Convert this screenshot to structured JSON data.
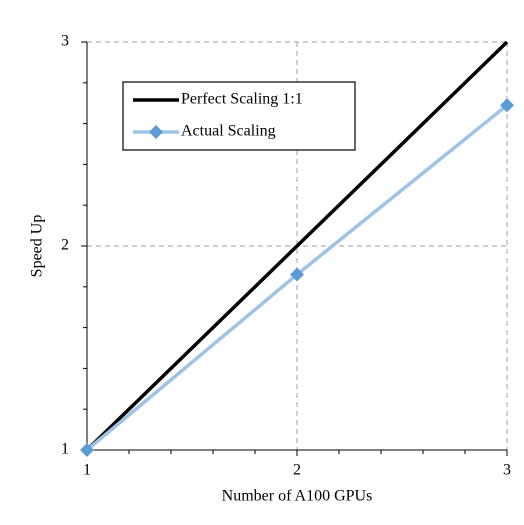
{
  "chart_data": {
    "type": "line",
    "x": [
      1,
      2,
      3
    ],
    "series": [
      {
        "name": "Perfect Scaling 1:1",
        "color": "#000000",
        "values": [
          1,
          2,
          3
        ],
        "marker": false
      },
      {
        "name": "Actual Scaling",
        "color": "#9dc3e6",
        "marker_color": "#5b9bd5",
        "values": [
          1,
          1.86,
          2.69
        ],
        "marker": true
      }
    ],
    "xlabel": "Number of A100 GPUs",
    "ylabel": "Speed Up",
    "xlim": [
      1,
      3
    ],
    "ylim": [
      1,
      3
    ],
    "xticks": [
      1,
      2,
      3
    ],
    "yticks": [
      1,
      2,
      3
    ],
    "grid": true,
    "legend": "upper left"
  }
}
